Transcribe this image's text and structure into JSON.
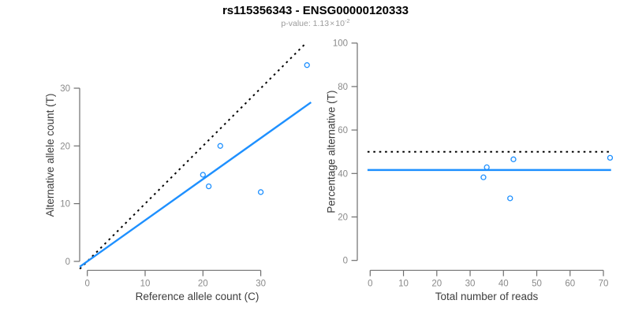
{
  "figure": {
    "title": "rs115356343 - ENSG00000120333",
    "subtitle_prefix": "p-value: ",
    "subtitle_mantissa": "1.13",
    "subtitle_times": "×",
    "subtitle_base": "10",
    "subtitle_exponent": "-2"
  },
  "colors": {
    "accent_blue": "#1E90FF",
    "dotted_black": "#000000",
    "axis_gray": "#6e6e6e",
    "tick_label_gray": "#8a8a8a",
    "axis_title_gray": "#3d3d3d",
    "background": "#ffffff"
  },
  "chart_data": [
    {
      "id": "allele-counts",
      "type": "scatter",
      "xlabel": "Reference allele count (C)",
      "ylabel": "Alternative allele count (T)",
      "xticks": [
        0,
        10,
        20,
        30
      ],
      "yticks": [
        0,
        10,
        20,
        30
      ],
      "xlim": [
        -1.5,
        38.8
      ],
      "ylim": [
        -1.6,
        37.8
      ],
      "grid": false,
      "points": [
        {
          "x": 20,
          "y": 15
        },
        {
          "x": 21,
          "y": 13
        },
        {
          "x": 23,
          "y": 20
        },
        {
          "x": 30,
          "y": 12
        },
        {
          "x": 38,
          "y": 34
        }
      ],
      "lines": [
        {
          "name": "identity-line",
          "slope": 1,
          "intercept": 0,
          "style": "dotted",
          "color_key": "dotted_black",
          "x_range": [
            -1.3,
            37.55
          ]
        },
        {
          "name": "fit-line",
          "slope": 0.712,
          "intercept": 0,
          "style": "solid",
          "color_key": "accent_blue",
          "x_range": [
            -1.3,
            38.7
          ]
        }
      ]
    },
    {
      "id": "percentage-alternative",
      "type": "scatter",
      "xlabel": "Total number of reads",
      "ylabel": "Percentage alternative (T)",
      "xticks": [
        0,
        10,
        20,
        30,
        40,
        50,
        60,
        70
      ],
      "yticks": [
        0,
        20,
        40,
        60,
        80,
        100
      ],
      "xlim": [
        -3.9,
        74.0
      ],
      "ylim": [
        -4.6,
        104.6
      ],
      "grid": false,
      "points": [
        {
          "x": 35,
          "y": 42.86
        },
        {
          "x": 34,
          "y": 38.24
        },
        {
          "x": 43,
          "y": 46.51
        },
        {
          "x": 42,
          "y": 28.57
        },
        {
          "x": 72,
          "y": 47.22
        }
      ],
      "lines": [
        {
          "name": "expected-percentage-line",
          "slope": 0,
          "intercept": 50,
          "style": "dotted",
          "color_key": "dotted_black",
          "x_range": [
            -0.8,
            72.0
          ]
        },
        {
          "name": "observed-percentage-line",
          "slope": 0,
          "intercept": 41.6,
          "style": "solid",
          "color_key": "accent_blue",
          "x_range": [
            -0.8,
            72.3
          ]
        }
      ]
    }
  ]
}
